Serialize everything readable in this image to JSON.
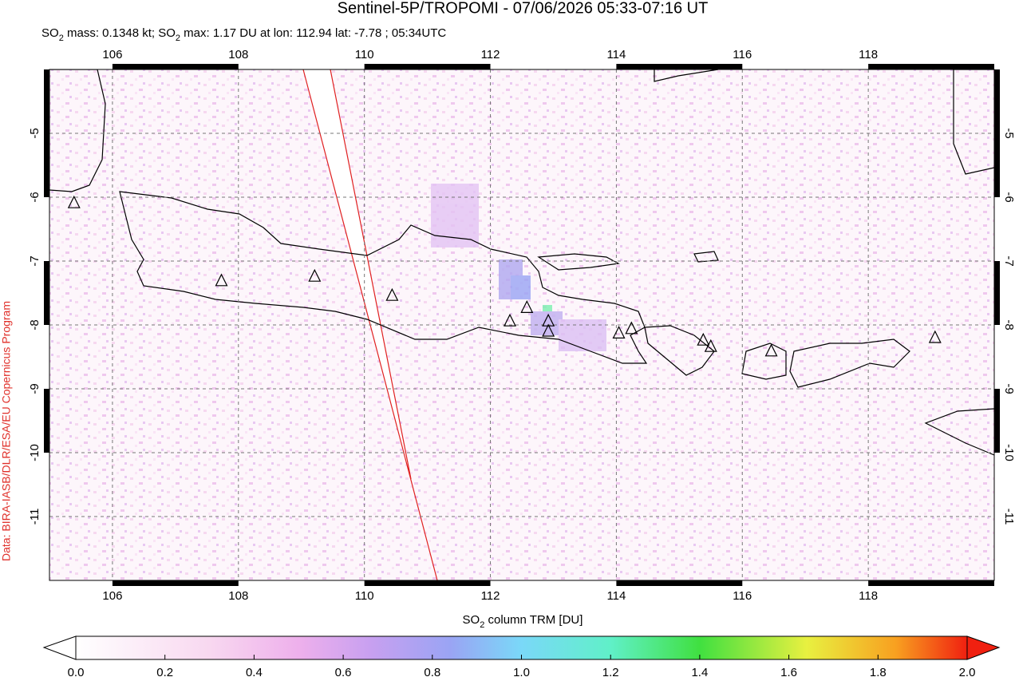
{
  "title": "Sentinel-5P/TROPOMI - 07/06/2026 05:33-07:16 UT",
  "subtitle": [
    "SO",
    "2",
    " mass: 0.1348 kt; SO",
    "2",
    " max: 1.17 DU at lon: 112.94 lat: -7.78 ; 05:34UTC"
  ],
  "credit": "Data: BIRA-IASB/DLR/ESA/EU Copernicus Program",
  "map": {
    "xlim": [
      105,
      120
    ],
    "ylim": [
      -12,
      -4
    ],
    "xticks": [
      106,
      108,
      110,
      112,
      114,
      116,
      118
    ],
    "yticks": [
      -5,
      -6,
      -7,
      -8,
      -9,
      -10,
      -11
    ],
    "volcanoes": [
      [
        105.39,
        -6.09
      ],
      [
        107.73,
        -7.31
      ],
      [
        109.21,
        -7.24
      ],
      [
        110.44,
        -7.54
      ],
      [
        112.31,
        -7.94
      ],
      [
        112.58,
        -7.73
      ],
      [
        112.92,
        -7.94
      ],
      [
        112.92,
        -8.1
      ],
      [
        114.04,
        -8.13
      ],
      [
        114.24,
        -8.06
      ],
      [
        115.38,
        -8.24
      ],
      [
        115.5,
        -8.34
      ],
      [
        116.46,
        -8.41
      ],
      [
        119.06,
        -8.2
      ]
    ]
  },
  "colorbar": {
    "label": [
      "SO",
      "2",
      " column TRM [DU]"
    ],
    "lim": [
      0,
      2
    ],
    "ticks": [
      {
        "value": 0,
        "label": "0.0"
      },
      0.2,
      0.4,
      0.6,
      0.8,
      {
        "value": 1,
        "label": "1.0"
      },
      1.2,
      1.4,
      1.6,
      1.8,
      {
        "value": 2,
        "label": "2.0"
      }
    ]
  }
}
